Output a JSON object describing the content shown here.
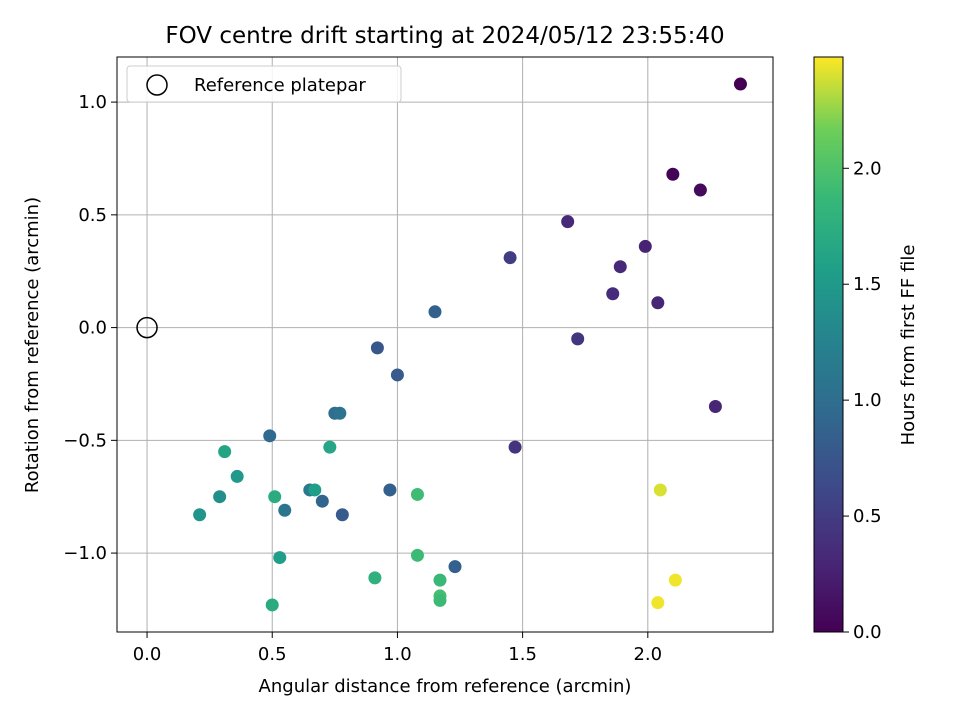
{
  "chart_data": {
    "type": "scatter",
    "title": "FOV centre drift starting at 2024/05/12 23:55:40",
    "xlabel": "Angular distance from reference (arcmin)",
    "ylabel": "Rotation from reference (arcmin)",
    "xlim": [
      -0.12,
      2.5
    ],
    "ylim": [
      -1.35,
      1.2
    ],
    "xticks": [
      0.0,
      0.5,
      1.0,
      1.5,
      2.0
    ],
    "xtick_labels": [
      "0.0",
      "0.5",
      "1.0",
      "1.5",
      "2.0"
    ],
    "yticks": [
      -1.0,
      -0.5,
      0.0,
      0.5,
      1.0
    ],
    "ytick_labels": [
      "−1.0",
      "−0.5",
      "0.0",
      "0.5",
      "1.0"
    ],
    "grid": true,
    "legend": {
      "placement": "upper-left",
      "entries": [
        "Reference platepar"
      ]
    },
    "reference_point": {
      "x": 0.0,
      "y": 0.0
    },
    "colorbar": {
      "label": "Hours from first FF file",
      "colormap": "viridis",
      "range": [
        0.0,
        2.48
      ],
      "ticks": [
        0.0,
        0.5,
        1.0,
        1.5,
        2.0
      ],
      "tick_labels": [
        "0.0",
        "0.5",
        "1.0",
        "1.5",
        "2.0"
      ]
    },
    "points": [
      {
        "x": 2.37,
        "y": 1.08,
        "c": 0.0
      },
      {
        "x": 2.1,
        "y": 0.68,
        "c": 0.03
      },
      {
        "x": 2.21,
        "y": 0.61,
        "c": 0.07
      },
      {
        "x": 1.68,
        "y": 0.47,
        "c": 0.32
      },
      {
        "x": 1.99,
        "y": 0.36,
        "c": 0.28
      },
      {
        "x": 1.89,
        "y": 0.27,
        "c": 0.33
      },
      {
        "x": 1.86,
        "y": 0.15,
        "c": 0.36
      },
      {
        "x": 2.04,
        "y": 0.11,
        "c": 0.3
      },
      {
        "x": 1.45,
        "y": 0.31,
        "c": 0.5
      },
      {
        "x": 1.72,
        "y": -0.05,
        "c": 0.45
      },
      {
        "x": 2.27,
        "y": -0.35,
        "c": 0.29
      },
      {
        "x": 1.47,
        "y": -0.53,
        "c": 0.42
      },
      {
        "x": 1.15,
        "y": 0.07,
        "c": 0.85
      },
      {
        "x": 0.92,
        "y": -0.09,
        "c": 0.75
      },
      {
        "x": 1.0,
        "y": -0.21,
        "c": 0.8
      },
      {
        "x": 0.75,
        "y": -0.38,
        "c": 1.0
      },
      {
        "x": 0.77,
        "y": -0.38,
        "c": 1.05
      },
      {
        "x": 0.49,
        "y": -0.48,
        "c": 0.95
      },
      {
        "x": 0.73,
        "y": -0.53,
        "c": 1.65
      },
      {
        "x": 0.31,
        "y": -0.55,
        "c": 1.62
      },
      {
        "x": 0.36,
        "y": -0.66,
        "c": 1.5
      },
      {
        "x": 0.29,
        "y": -0.75,
        "c": 1.38
      },
      {
        "x": 0.21,
        "y": -0.83,
        "c": 1.45
      },
      {
        "x": 0.51,
        "y": -0.75,
        "c": 1.72
      },
      {
        "x": 0.55,
        "y": -0.81,
        "c": 1.1
      },
      {
        "x": 0.65,
        "y": -0.72,
        "c": 1.15
      },
      {
        "x": 0.67,
        "y": -0.72,
        "c": 1.55
      },
      {
        "x": 0.7,
        "y": -0.77,
        "c": 0.9
      },
      {
        "x": 0.78,
        "y": -0.83,
        "c": 0.8
      },
      {
        "x": 0.97,
        "y": -0.72,
        "c": 0.85
      },
      {
        "x": 1.08,
        "y": -0.74,
        "c": 1.92
      },
      {
        "x": 0.53,
        "y": -1.02,
        "c": 1.55
      },
      {
        "x": 1.08,
        "y": -1.01,
        "c": 1.9
      },
      {
        "x": 0.91,
        "y": -1.11,
        "c": 1.78
      },
      {
        "x": 0.5,
        "y": -1.23,
        "c": 1.7
      },
      {
        "x": 1.17,
        "y": -1.12,
        "c": 1.88
      },
      {
        "x": 1.17,
        "y": -1.19,
        "c": 1.95
      },
      {
        "x": 1.17,
        "y": -1.21,
        "c": 1.9
      },
      {
        "x": 1.23,
        "y": -1.06,
        "c": 0.85
      },
      {
        "x": 2.05,
        "y": -0.72,
        "c": 2.4
      },
      {
        "x": 2.11,
        "y": -1.12,
        "c": 2.45
      },
      {
        "x": 2.04,
        "y": -1.22,
        "c": 2.45
      }
    ]
  }
}
